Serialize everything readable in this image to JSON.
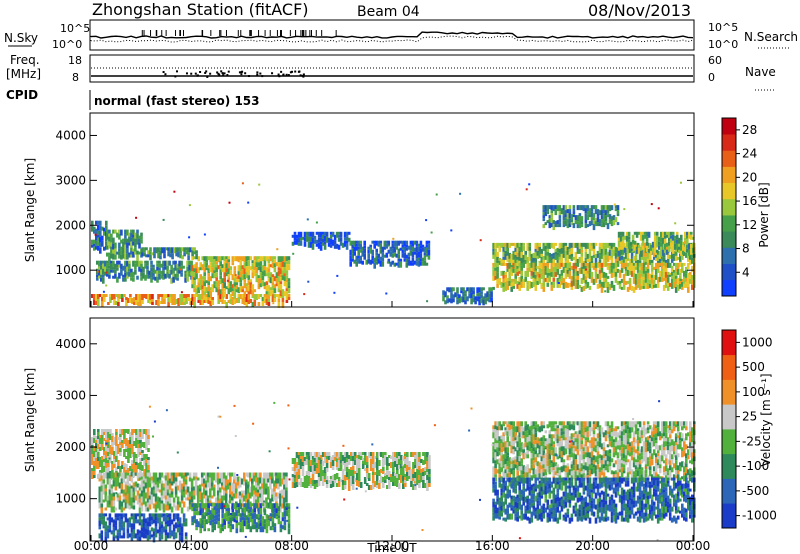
{
  "header": {
    "station": "Zhongshan Station (fitACF)",
    "beam": "Beam 04",
    "date": "08/Nov/2013",
    "mode": "normal (fast stereo) 153"
  },
  "ctrl": {
    "nsky_label": "N.Sky",
    "nsearch_label": "N.Search",
    "freq_label": "Freq.",
    "freq_unit": "[MHz]",
    "nave_label": "Nave",
    "cpid_label": "CPID",
    "nsky_ticks": [
      "10^5",
      "10^0"
    ],
    "nsearch_ticks": [
      "10^5",
      "10^0"
    ],
    "freq_ticks": [
      "18",
      "8"
    ],
    "nave_ticks": [
      "60",
      "0"
    ]
  },
  "chart_data": [
    {
      "type": "heatmap",
      "name": "power",
      "ylabel": "Slant Range [km]",
      "xlabel": "",
      "yticks": [
        "1000",
        "2000",
        "3000",
        "4000"
      ],
      "ylim": [
        180,
        4500
      ],
      "xlim": [
        0,
        24
      ],
      "colorbar": {
        "label": "Power [dB]",
        "ticks": [
          "4",
          "8",
          "12",
          "16",
          "20",
          "24",
          "28"
        ],
        "colors": [
          "#1040ff",
          "#2050c8",
          "#2e6fae",
          "#3a8a5a",
          "#46a04a",
          "#9ac83c",
          "#e8c828",
          "#f0a020",
          "#e86018",
          "#d82818",
          "#c00010"
        ],
        "range": [
          0,
          30
        ]
      },
      "bands": [
        {
          "t0": 0.0,
          "t1": 0.6,
          "r0": 1450,
          "r1": 2100,
          "level": 0.25
        },
        {
          "t0": 0.6,
          "t1": 2.0,
          "r0": 1300,
          "r1": 1900,
          "level": 0.35
        },
        {
          "t0": 0.0,
          "t1": 7.9,
          "r0": 250,
          "r1": 450,
          "level": 0.65
        },
        {
          "t0": 0.2,
          "t1": 4.0,
          "r0": 800,
          "r1": 1200,
          "level": 0.3
        },
        {
          "t0": 4.0,
          "t1": 7.9,
          "r0": 500,
          "r1": 1300,
          "level": 0.55
        },
        {
          "t0": 2.0,
          "t1": 4.2,
          "r0": 1300,
          "r1": 1500,
          "level": 0.3
        },
        {
          "t0": 8.0,
          "t1": 10.3,
          "r0": 1550,
          "r1": 1850,
          "level": 0.15
        },
        {
          "t0": 10.3,
          "t1": 13.5,
          "r0": 1150,
          "r1": 1650,
          "level": 0.18
        },
        {
          "t0": 16.0,
          "t1": 24.0,
          "r0": 1150,
          "r1": 1600,
          "level": 0.45
        },
        {
          "t0": 16.0,
          "t1": 24.0,
          "r0": 600,
          "r1": 1150,
          "level": 0.55
        },
        {
          "t0": 18.0,
          "t1": 21.0,
          "r0": 2000,
          "r1": 2450,
          "level": 0.3
        },
        {
          "t0": 21.0,
          "t1": 24.0,
          "r0": 1400,
          "r1": 1850,
          "level": 0.45
        },
        {
          "t0": 14.0,
          "t1": 16.0,
          "r0": 300,
          "r1": 600,
          "level": 0.2
        }
      ]
    },
    {
      "type": "heatmap",
      "name": "velocity",
      "ylabel": "Slant Range [km]",
      "xlabel": "Time UT",
      "yticks": [
        "1000",
        "2000",
        "3000",
        "4000"
      ],
      "xticks": [
        "00:00",
        "04:00",
        "08:00",
        "12:00",
        "16:00",
        "20:00",
        "00:00"
      ],
      "ylim": [
        180,
        4500
      ],
      "xlim": [
        0,
        24
      ],
      "colorbar": {
        "label": "Velocity [m s⁻¹]",
        "ticks": [
          "1000",
          "500",
          "100",
          "25",
          "-25",
          "-100",
          "-500",
          "-1000"
        ],
        "colors": [
          "#1a3cc8",
          "#2b66b8",
          "#2e8a5a",
          "#52b03c",
          "#c8c8c8",
          "#f09028",
          "#f06014",
          "#e01010"
        ],
        "range": [
          -1000,
          1000
        ]
      },
      "bands": [
        {
          "t0": 0.0,
          "t1": 2.3,
          "r0": 1450,
          "r1": 2350,
          "level": 0.55
        },
        {
          "t0": 0.3,
          "t1": 7.8,
          "r0": 800,
          "r1": 1500,
          "level": 0.5
        },
        {
          "t0": 0.3,
          "t1": 3.8,
          "r0": 250,
          "r1": 700,
          "level": 0.15
        },
        {
          "t0": 4.0,
          "t1": 7.9,
          "r0": 400,
          "r1": 900,
          "level": 0.3
        },
        {
          "t0": 8.0,
          "t1": 13.5,
          "r0": 1250,
          "r1": 1900,
          "level": 0.5
        },
        {
          "t0": 16.0,
          "t1": 24.0,
          "r0": 1400,
          "r1": 2500,
          "level": 0.5
        },
        {
          "t0": 16.0,
          "t1": 24.0,
          "r0": 600,
          "r1": 1400,
          "level": 0.2
        }
      ]
    }
  ]
}
